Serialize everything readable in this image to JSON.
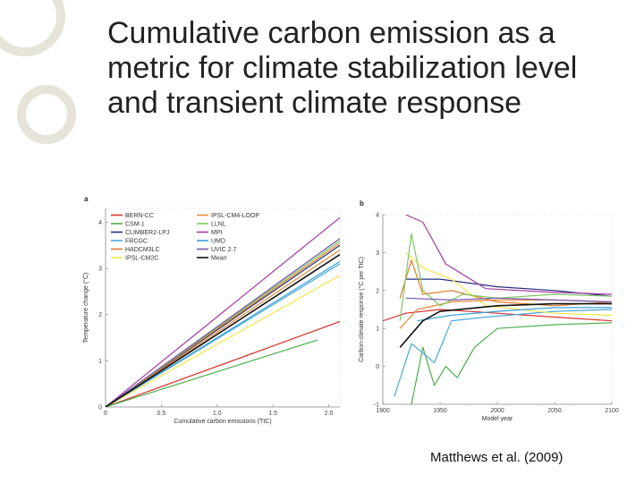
{
  "slide": {
    "title": "Cumulative carbon emission as a metric for climate stabilization level and transient climate response",
    "citation": "Matthews et al. (2009)"
  },
  "chart_data": [
    {
      "type": "line",
      "panel": "a",
      "xlabel": "Cumulative carbon emissions (TtC)",
      "ylabel": "Temperature change (°C)",
      "xlim": [
        0,
        2.1
      ],
      "ylim": [
        0,
        4.3
      ],
      "xticks": [
        "0",
        "0.5",
        "1.0",
        "1.5",
        "2.0"
      ],
      "yticks": [
        "0",
        "1",
        "2",
        "3",
        "4"
      ],
      "legend_placement": "top-left",
      "series": [
        {
          "name": "BERN-CC",
          "color": "#d9302c",
          "x": [
            0,
            2.1
          ],
          "y": [
            0,
            1.85
          ]
        },
        {
          "name": "CSM-1",
          "color": "#4cae4c",
          "x": [
            0,
            1.9
          ],
          "y": [
            0,
            1.45
          ]
        },
        {
          "name": "CLIMBER2-LPJ",
          "color": "#23307a",
          "x": [
            0,
            2.1
          ],
          "y": [
            0,
            3.5
          ]
        },
        {
          "name": "FRCGC",
          "color": "#4aa8d8",
          "x": [
            0,
            2.1
          ],
          "y": [
            0,
            3.1
          ]
        },
        {
          "name": "HADCM3LC",
          "color": "#e07a2a",
          "x": [
            0,
            2.1
          ],
          "y": [
            0,
            3.55
          ]
        },
        {
          "name": "IPSL-CM2C",
          "color": "#f2e64a",
          "x": [
            0,
            2.1
          ],
          "y": [
            0,
            2.85
          ]
        },
        {
          "name": "IPSL-CM4-LOOP",
          "color": "#e48a3a",
          "x": [
            0,
            2.1
          ],
          "y": [
            0,
            3.4
          ]
        },
        {
          "name": "LLNL",
          "color": "#7cc860",
          "x": [
            0,
            2.1
          ],
          "y": [
            0,
            3.6
          ]
        },
        {
          "name": "MPI",
          "color": "#a43aa0",
          "x": [
            0,
            2.1
          ],
          "y": [
            0,
            4.1
          ]
        },
        {
          "name": "UMD",
          "color": "#3aa0d8",
          "x": [
            0,
            2.1
          ],
          "y": [
            0,
            3.15
          ]
        },
        {
          "name": "UVIC 2.7",
          "color": "#7a56b0",
          "x": [
            0,
            2.1
          ],
          "y": [
            0,
            3.65
          ]
        },
        {
          "name": "Mean",
          "color": "#111111",
          "x": [
            0,
            2.1
          ],
          "y": [
            0,
            3.3
          ]
        }
      ]
    },
    {
      "type": "line",
      "panel": "b",
      "xlabel": "Model year",
      "ylabel": "Carbon-climate response (°C per TtC)",
      "xlim": [
        1900,
        2100
      ],
      "ylim": [
        -1,
        4
      ],
      "xticks": [
        "1900",
        "1950",
        "2000",
        "2050",
        "2100"
      ],
      "yticks": [
        "-1",
        "0",
        "1",
        "2",
        "3",
        "4"
      ],
      "series": [
        {
          "name": "BERN-CC",
          "color": "#d9302c",
          "x": [
            1900,
            1920,
            1950,
            2000,
            2050,
            2100
          ],
          "y": [
            1.2,
            1.4,
            1.5,
            1.4,
            1.3,
            1.2
          ]
        },
        {
          "name": "CSM-1",
          "color": "#4cae4c",
          "x": [
            1925,
            1935,
            1945,
            1955,
            1965,
            1980,
            2000,
            2050,
            2100
          ],
          "y": [
            -1,
            0.5,
            -0.5,
            0,
            -0.3,
            0.5,
            1.0,
            1.1,
            1.15
          ]
        },
        {
          "name": "CLIMBER2-LPJ",
          "color": "#23307a",
          "x": [
            1920,
            1950,
            2000,
            2050,
            2100
          ],
          "y": [
            2.3,
            2.3,
            2.1,
            2.0,
            1.85
          ]
        },
        {
          "name": "FRCGC",
          "color": "#4aa8d8",
          "x": [
            1910,
            1925,
            1945,
            1960,
            1990,
            2050,
            2100
          ],
          "y": [
            -0.8,
            0.6,
            0.1,
            1.2,
            1.3,
            1.45,
            1.5
          ]
        },
        {
          "name": "HADCM3LC",
          "color": "#e07a2a",
          "x": [
            1915,
            1925,
            1935,
            1960,
            2000,
            2050,
            2100
          ],
          "y": [
            1.8,
            2.8,
            1.9,
            2.0,
            1.7,
            1.6,
            1.7
          ]
        },
        {
          "name": "IPSL-CM2C",
          "color": "#f2e64a",
          "x": [
            1920,
            1935,
            1960,
            1990,
            2050,
            2100
          ],
          "y": [
            3.0,
            2.6,
            2.3,
            1.6,
            1.4,
            1.35
          ]
        },
        {
          "name": "IPSL-CM4-LOOP",
          "color": "#e48a3a",
          "x": [
            1915,
            1930,
            1960,
            2000,
            2050,
            2100
          ],
          "y": [
            1.0,
            1.5,
            1.7,
            1.75,
            1.75,
            1.7
          ]
        },
        {
          "name": "LLNL",
          "color": "#7cc860",
          "x": [
            1915,
            1925,
            1935,
            1950,
            1970,
            2000,
            2050,
            2100
          ],
          "y": [
            1.2,
            3.5,
            2.0,
            1.6,
            1.9,
            1.8,
            1.9,
            1.85
          ]
        },
        {
          "name": "MPI",
          "color": "#a43aa0",
          "x": [
            1920,
            1935,
            1955,
            1990,
            2050,
            2100
          ],
          "y": [
            4.0,
            3.8,
            2.7,
            2.05,
            1.95,
            1.9
          ]
        },
        {
          "name": "UMD",
          "color": "#3aa0d8",
          "x": [
            1930,
            1960,
            2000,
            2050,
            2100
          ],
          "y": [
            1.2,
            1.35,
            1.45,
            1.55,
            1.55
          ]
        },
        {
          "name": "UVIC 2.7",
          "color": "#7a56b0",
          "x": [
            1920,
            1960,
            2000,
            2050,
            2100
          ],
          "y": [
            1.8,
            1.75,
            1.8,
            1.75,
            1.7
          ]
        },
        {
          "name": "Mean",
          "color": "#111111",
          "x": [
            1915,
            1935,
            1950,
            2000,
            2050,
            2100
          ],
          "y": [
            0.5,
            1.2,
            1.45,
            1.6,
            1.65,
            1.65
          ]
        }
      ]
    }
  ]
}
